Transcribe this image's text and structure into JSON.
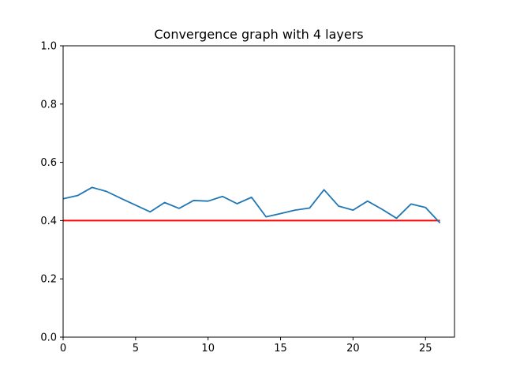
{
  "chart_data": {
    "type": "line",
    "title": "Convergence graph with 4 layers",
    "xlabel": "",
    "ylabel": "",
    "xlim": [
      0,
      27
    ],
    "ylim": [
      0,
      1.0
    ],
    "grid": false,
    "x_ticks": [
      0,
      5,
      10,
      15,
      20,
      25
    ],
    "x_tick_labels": [
      "0",
      "5",
      "10",
      "15",
      "20",
      "25"
    ],
    "y_ticks": [
      0,
      0.2,
      0.4,
      0.6,
      0.8,
      1.0
    ],
    "y_tick_labels": [
      "0.0",
      "0.2",
      "0.4",
      "0.6",
      "0.8",
      "1.0"
    ],
    "series": [
      {
        "color": "#1f77b4",
        "x": [
          0,
          1,
          2,
          3,
          4,
          5,
          6,
          7,
          8,
          9,
          10,
          11,
          12,
          13,
          14,
          15,
          16,
          17,
          18,
          19,
          20,
          21,
          22,
          23,
          24,
          25,
          26
        ],
        "values": [
          0.475,
          0.486,
          0.514,
          0.5,
          0.476,
          0.453,
          0.43,
          0.462,
          0.442,
          0.469,
          0.467,
          0.483,
          0.458,
          0.48,
          0.413,
          0.424,
          0.436,
          0.443,
          0.506,
          0.45,
          0.436,
          0.467,
          0.439,
          0.408,
          0.457,
          0.445,
          0.392
        ]
      }
    ],
    "reference_lines": [
      {
        "color": "#ff0000",
        "x": [
          0,
          26
        ],
        "values": [
          0.4,
          0.4
        ]
      }
    ]
  }
}
